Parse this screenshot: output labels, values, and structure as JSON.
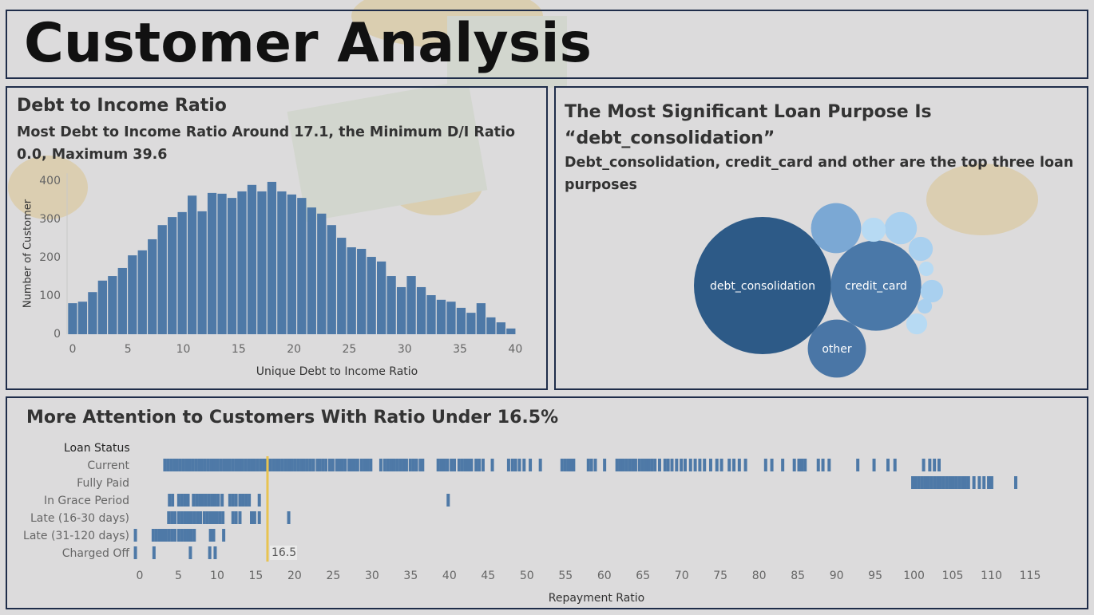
{
  "title": "Customer Analysis",
  "chart_data": [
    {
      "type": "histogram",
      "title": "Debt to Income Ratio",
      "subtitle": "Most Debt to Income Ratio Around 17.1, the Minimum D/I Ratio 0.0, Maximum 39.6",
      "x_label": "Unique Debt to Income Ratio",
      "y_label": "Number of Customer",
      "color": "#4e79a7",
      "bins": [
        -0.45,
        0.45,
        1.35,
        2.25,
        3.15,
        4.05,
        4.95,
        5.85,
        6.75,
        7.65,
        8.55,
        9.45,
        10.35,
        11.25,
        12.15,
        13.05,
        13.95,
        14.85,
        15.75,
        16.65,
        17.55,
        18.45,
        19.35,
        20.25,
        21.15,
        22.05,
        22.95,
        23.85,
        24.75,
        25.65,
        26.55,
        27.45,
        28.35,
        29.25,
        30.15,
        31.05,
        31.95,
        32.85,
        33.75,
        34.65,
        35.55,
        36.45,
        37.35,
        38.25,
        39.15,
        40.05
      ],
      "values": [
        81,
        85,
        110,
        140,
        152,
        173,
        206,
        219,
        248,
        285,
        306,
        319,
        362,
        321,
        369,
        367,
        356,
        373,
        390,
        373,
        398,
        373,
        365,
        356,
        331,
        315,
        285,
        252,
        227,
        223,
        202,
        190,
        152,
        123,
        152,
        123,
        102,
        90,
        85,
        69,
        56,
        81,
        44,
        31,
        15
      ],
      "xlim": [
        -0.5,
        42.5
      ],
      "xticks": [
        0,
        5,
        10,
        15,
        20,
        25,
        30,
        35,
        40
      ],
      "ylim": [
        0,
        420
      ],
      "yticks": [
        0,
        100,
        200,
        300,
        400
      ],
      "grid": false
    },
    {
      "type": "bubble",
      "title": "The Most Significant Loan Purpose Is “debt_consolidation”",
      "subtitle": "Debt_consolidation, credit_card and other are the top three loan purposes",
      "categories": [
        "debt_consolidation",
        "credit_card",
        "other",
        null,
        null,
        null,
        null,
        null,
        null,
        null,
        null
      ],
      "values": [
        18000,
        7800,
        3230,
        2395,
        997,
        561,
        561,
        488,
        202,
        202,
        421
      ],
      "colors": [
        "#2d5a87",
        "#4a78a8",
        "#4a76a6",
        "#7ba8d4",
        "#a9d0ef",
        "#b7daf3",
        "#a9d0ef",
        "#a9d0ef",
        "#b7daf3",
        "#a9d0ef",
        "#b7daf3"
      ]
    },
    {
      "type": "strip",
      "title": "More Attention to Customers With Ratio Under 16.5%",
      "row_header": "Loan Status",
      "x_label": "Repayment Ratio",
      "color": "#4e79a7",
      "reference_value": 16.5,
      "reference_color": "#e8c350",
      "series": [
        {
          "name": "Current",
          "values": [
            3.2,
            3.6,
            4,
            4.4,
            4.8,
            5.2,
            5.6,
            6,
            6.4,
            6.8,
            7.2,
            7.6,
            8,
            8.4,
            8.8,
            9.2,
            9.6,
            10,
            10.4,
            10.8,
            11.2,
            11.6,
            12,
            12.4,
            12.8,
            13.2,
            13.6,
            14,
            14.4,
            14.8,
            15.2,
            15.6,
            16,
            16.4,
            16.8,
            17.2,
            17.6,
            18,
            18.4,
            18.8,
            19.2,
            19.6,
            20,
            20.4,
            20.8,
            21.2,
            21.6,
            22,
            22.4,
            22.9,
            23.2,
            23.6,
            24,
            24.5,
            24.9,
            25.4,
            25.7,
            26.1,
            26.5,
            27,
            27.3,
            27.7,
            28.1,
            28.6,
            29,
            29.4,
            29.8,
            31.1,
            31.6,
            32,
            32.4,
            32.8,
            33.2,
            33.6,
            34,
            34.4,
            34.9,
            35.3,
            35.7,
            36.2,
            36.5,
            38.5,
            38.9,
            39.3,
            39.7,
            40.2,
            40.6,
            41.2,
            41.6,
            42,
            42.4,
            42.8,
            43.4,
            43.8,
            44.3,
            45.5,
            47.6,
            48.1,
            48.5,
            49,
            49.6,
            50.4,
            51.7,
            54.5,
            54.9,
            55.3,
            55.7,
            56,
            57.9,
            58.3,
            58.8,
            60,
            61.6,
            62,
            62.4,
            62.8,
            63.2,
            63.6,
            64,
            64.5,
            64.9,
            65.3,
            65.7,
            66.1,
            66.5,
            67.1,
            67.8,
            68.2,
            68.7,
            69.3,
            69.9,
            70.4,
            71.1,
            71.7,
            72.3,
            72.9,
            73.7,
            74.5,
            75.1,
            76.1,
            76.7,
            77.4,
            78.2,
            80.8,
            81.6,
            83,
            84.5,
            85.1,
            85.5,
            85.9,
            87.6,
            88.2,
            89,
            92.7,
            94.8,
            96.6,
            97.5,
            101.2,
            102,
            102.6,
            103.2
          ]
        },
        {
          "name": "Fully Paid",
          "values": [
            99.8,
            100.2,
            100.6,
            101,
            101.4,
            101.8,
            102.2,
            102.6,
            103,
            103.4,
            103.8,
            104.2,
            104.6,
            105,
            105.4,
            105.8,
            106.2,
            106.6,
            107,
            107.7,
            108.4,
            109,
            109.6,
            110,
            113.1
          ]
        },
        {
          "name": "In Grace Period",
          "values": [
            3.8,
            4.2,
            5,
            5.4,
            5.8,
            6.2,
            6.9,
            7.3,
            7.7,
            8.1,
            8.5,
            8.9,
            9.3,
            9.7,
            10.1,
            10.6,
            11.6,
            12,
            12.4,
            12.9,
            13.3,
            13.7,
            14.1,
            15.4,
            39.8
          ]
        },
        {
          "name": "Late (16-30 days)",
          "values": [
            3.7,
            4.1,
            4.5,
            5,
            5.4,
            5.8,
            6.2,
            6.6,
            7,
            7.4,
            7.8,
            8.3,
            8.7,
            9.1,
            9.5,
            9.9,
            10.3,
            10.7,
            12,
            12.4,
            12.9,
            14.4,
            14.8,
            15.4,
            19.2
          ]
        },
        {
          "name": "Late (31-120 days)",
          "values": [
            -0.6,
            1.7,
            2.1,
            2.5,
            2.9,
            3.3,
            3.7,
            4.1,
            4.5,
            5,
            5.4,
            5.8,
            6.2,
            6.6,
            7,
            9.1,
            9.5,
            10.8
          ]
        },
        {
          "name": "Charged Off",
          "values": [
            -0.6,
            1.8,
            6.5,
            9,
            9.7
          ]
        }
      ],
      "xlim": [
        -1,
        117
      ],
      "xticks": [
        0,
        5,
        10,
        15,
        20,
        25,
        30,
        35,
        40,
        45,
        50,
        55,
        60,
        65,
        70,
        75,
        80,
        85,
        90,
        95,
        100,
        105,
        110,
        115
      ]
    }
  ]
}
